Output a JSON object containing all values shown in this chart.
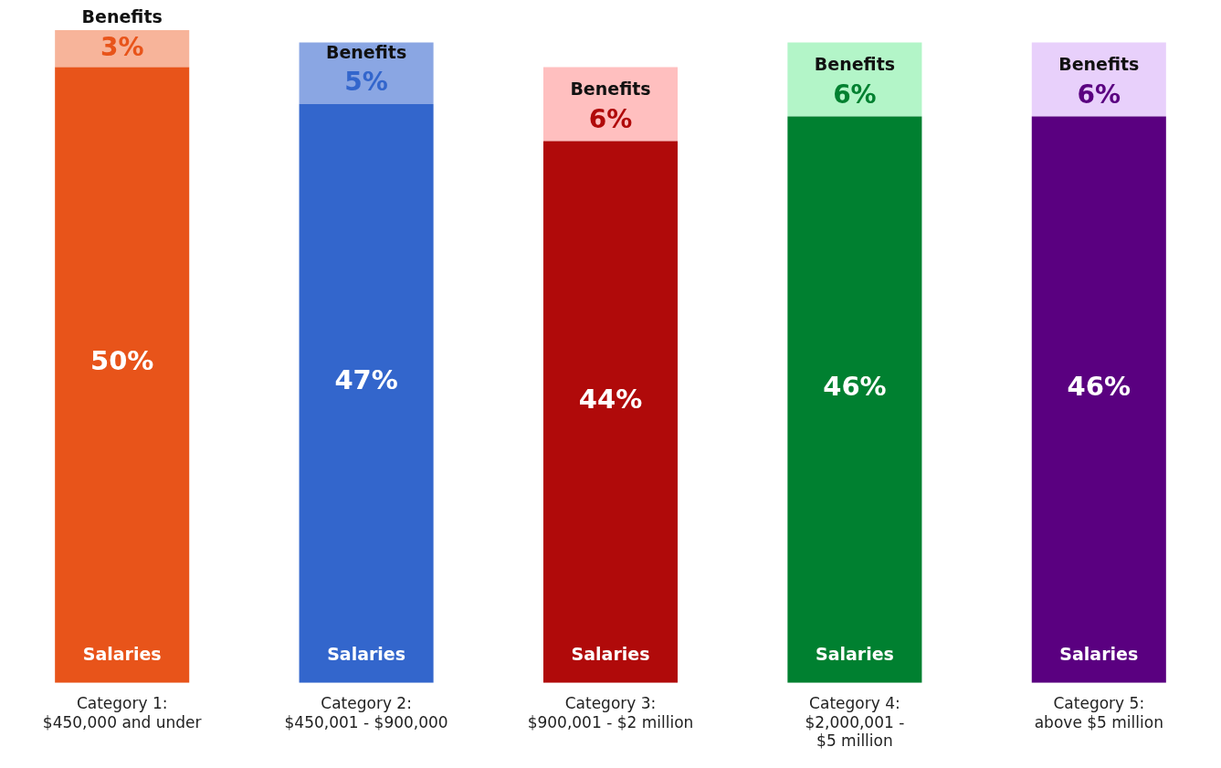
{
  "chart_data": {
    "type": "bar",
    "stacked": true,
    "legend": false,
    "grid": false,
    "categories": [
      "Category 1:\n$450,000 and under",
      "Category 2:\n$450,001 - $900,000",
      "Category 3:\n$900,001 - $2 million",
      "Category 4:\n$2,000,001 -\n$5 million",
      "Category 5:\nabove $5 million"
    ],
    "series": [
      {
        "name": "Salaries",
        "colors": [
          "#e8541a",
          "#3366cc",
          "#b00a0a",
          "#008030",
          "#5a0080"
        ],
        "values": [
          50,
          47,
          44,
          46,
          46
        ],
        "value_labels": [
          "50%",
          "47%",
          "44%",
          "46%",
          "46%"
        ]
      },
      {
        "name": "Benefits",
        "colors": [
          "#f7b49a",
          "#8aa6e3",
          "#ffbfbf",
          "#b3f5c8",
          "#e8d0fb"
        ],
        "values": [
          3,
          5,
          6,
          6,
          6
        ],
        "value_labels": [
          "3%",
          "5%",
          "6%",
          "6%",
          "6%"
        ]
      }
    ]
  }
}
